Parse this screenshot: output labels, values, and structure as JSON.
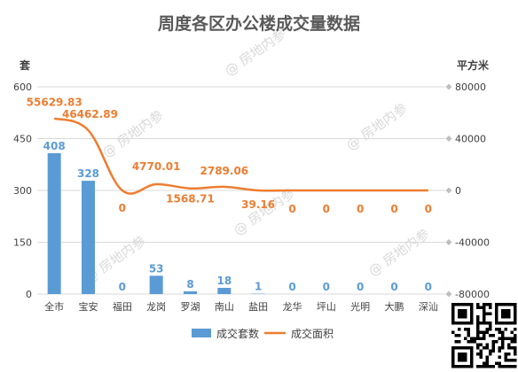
{
  "chart_data": {
    "type": "bar",
    "title": "周度各区办公楼成交量数据",
    "categories": [
      "全市",
      "宝安",
      "福田",
      "龙岗",
      "罗湖",
      "南山",
      "盐田",
      "龙华",
      "坪山",
      "光明",
      "大鹏",
      "深汕"
    ],
    "y_left": {
      "label": "套",
      "ticks": [
        "0",
        "150",
        "300",
        "450",
        "600"
      ],
      "range": [
        0,
        600
      ]
    },
    "y_right": {
      "label": "平方米",
      "ticks": [
        "-80000",
        "-40000",
        "0",
        "40000",
        "80000"
      ],
      "range": [
        -80000,
        80000
      ]
    },
    "series": [
      {
        "name": "成交套数",
        "type": "bar",
        "axis": "left",
        "color": "#5b9bd5",
        "values": [
          408,
          328,
          0,
          53,
          8,
          18,
          1,
          0,
          0,
          0,
          0,
          0
        ],
        "labels": [
          "408",
          "328",
          "0",
          "53",
          "8",
          "18",
          "1",
          "0",
          "0",
          "0",
          "0",
          "0"
        ]
      },
      {
        "name": "成交面积",
        "type": "line",
        "axis": "right",
        "color": "#ed7d31",
        "values": [
          55629.83,
          46462.89,
          0,
          4770.01,
          1568.71,
          2789.06,
          39.16,
          0,
          0,
          0,
          0,
          0
        ],
        "labels": [
          "55629.83",
          "46462.89",
          "0",
          "4770.01",
          "1568.71",
          "2789.06",
          "39.16",
          "0",
          "0",
          "0",
          "0",
          "0"
        ]
      }
    ],
    "grid": true,
    "legend_position": "bottom"
  },
  "watermark_text": "@ 房地内参"
}
